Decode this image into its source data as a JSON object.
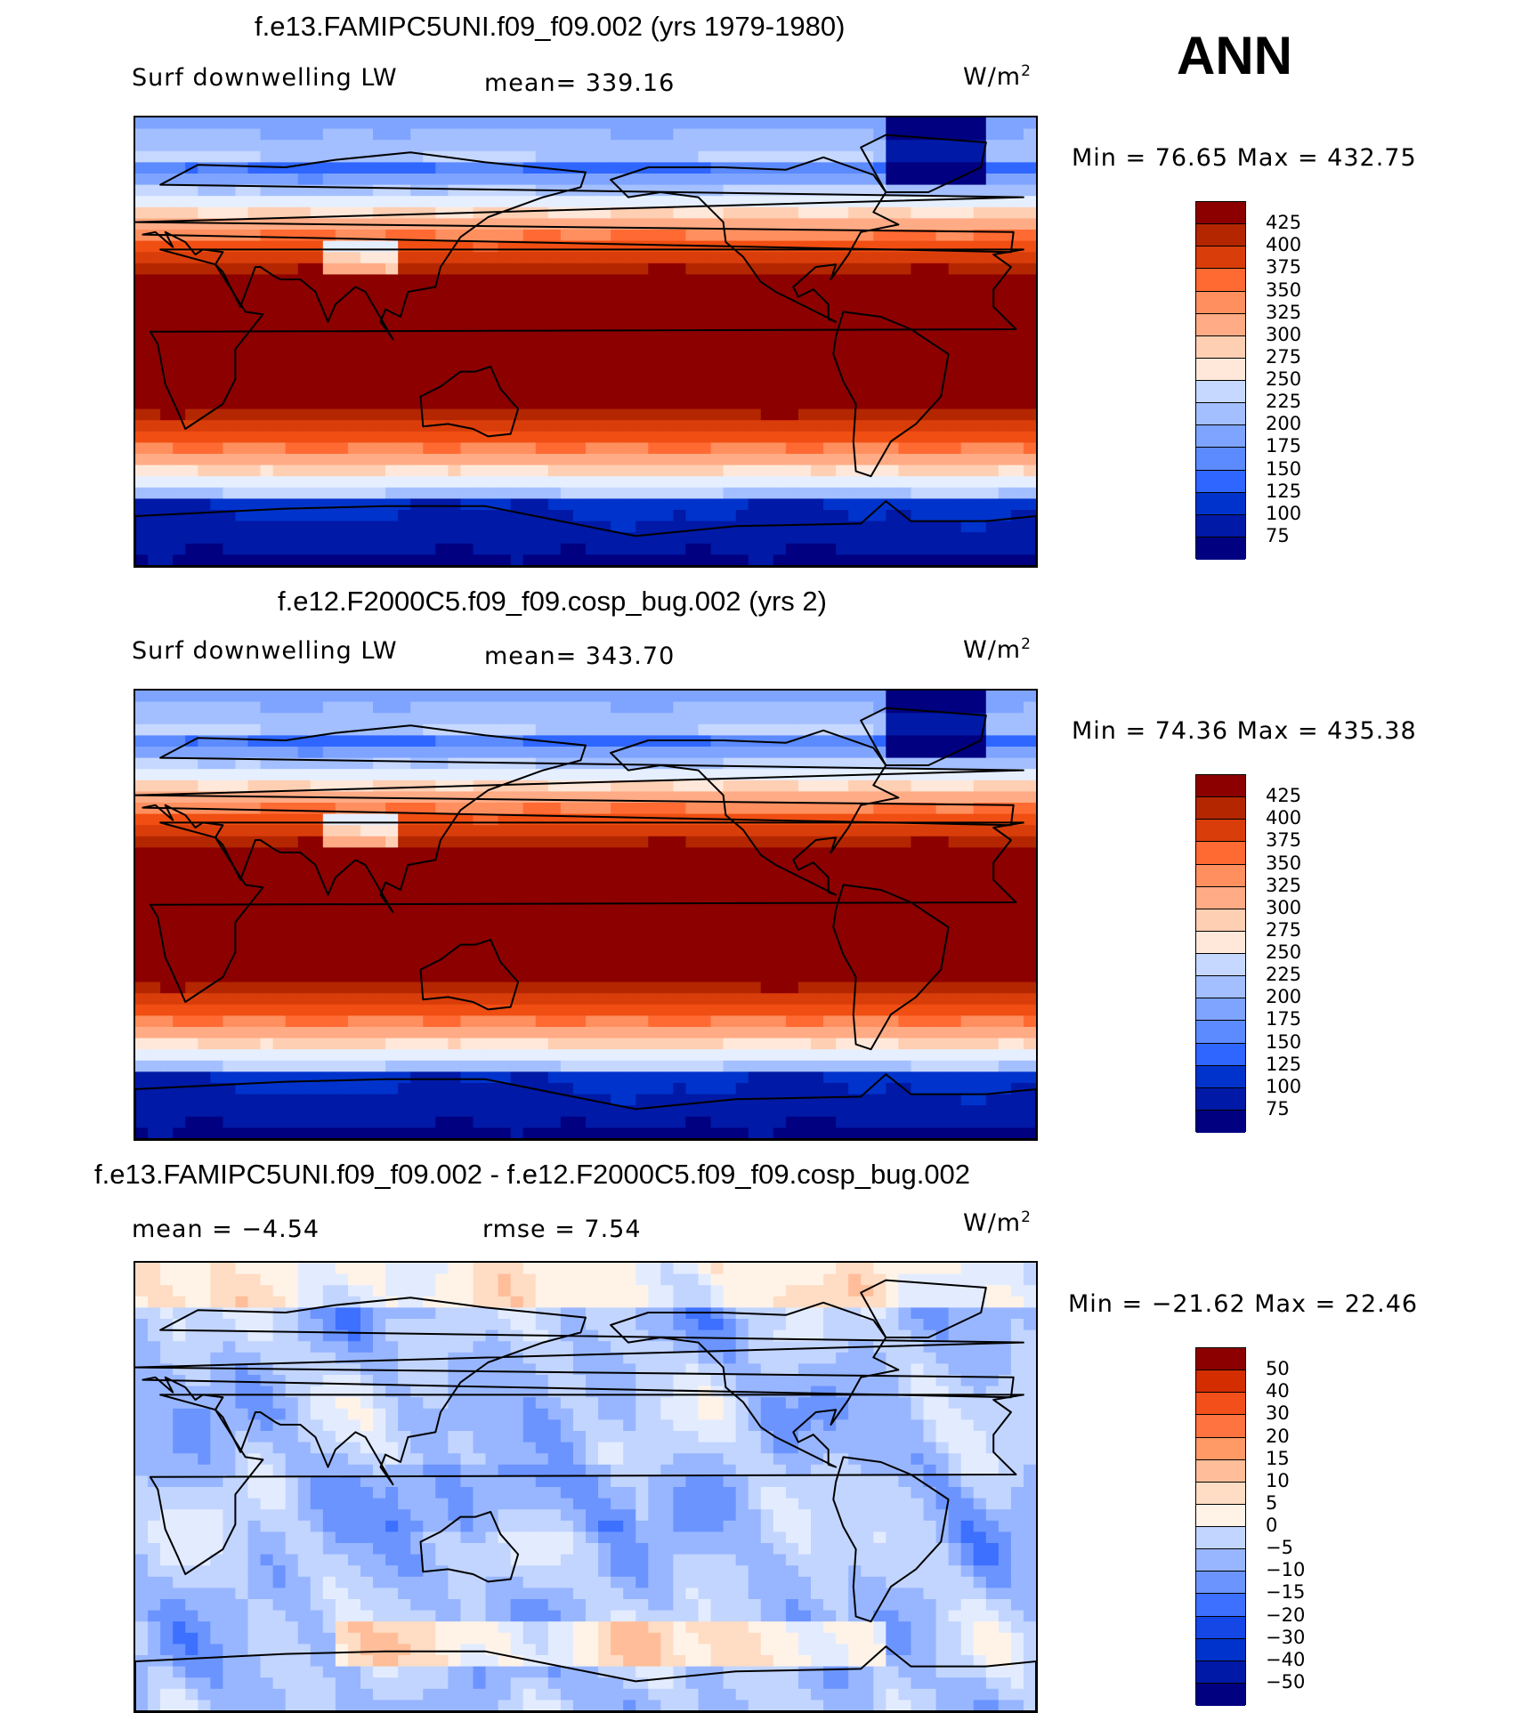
{
  "season": "ANN",
  "units": "W/m",
  "units_exp": "2",
  "colors": {
    "abs_scale": [
      "#ffffff",
      "#000080",
      "#0019a6",
      "#0033cc",
      "#1447e6",
      "#2e66ff",
      "#5c8aff",
      "#7ea4ff",
      "#a3bfff",
      "#c6d8ff",
      "#e5efff",
      "#ffe8d9",
      "#ffcfb3",
      "#ffab85",
      "#ff8f5e",
      "#ff6a33",
      "#f04e12",
      "#d93d0a",
      "#b32600",
      "#8c0000"
    ],
    "diff_scale": [
      "#000080",
      "#0019a6",
      "#0033cc",
      "#1447e6",
      "#3d70ff",
      "#6b94ff",
      "#98b6ff",
      "#c2d5ff",
      "#e3ecff",
      "#fff3e8",
      "#ffdcc4",
      "#ffbd99",
      "#ff9966",
      "#ff7340",
      "#f24f1a",
      "#d42d00",
      "#8c0000"
    ]
  },
  "panels": [
    {
      "title": "f.e13.FAMIPC5UNI.f09_f09.002 (yrs 1979-1980)",
      "left_label": "Surf downwelling LW",
      "center_label": "mean= 339.16",
      "minmax": "Min =   76.65 Max = 432.75"
    },
    {
      "title": "f.e12.F2000C5.f09_f09.cosp_bug.002 (yrs 2)",
      "left_label": "Surf downwelling LW",
      "center_label": "mean= 343.70",
      "minmax": "Min =   74.36 Max = 435.38"
    },
    {
      "title": "f.e13.FAMIPC5UNI.f09_f09.002 - f.e12.F2000C5.f09_f09.cosp_bug.002",
      "left_label": "mean =   −4.54",
      "center_label": "rmse =    7.54",
      "minmax": "Min = −21.62 Max =  22.46"
    }
  ],
  "chart_data": [
    {
      "type": "heatmap",
      "title": "f.e13.FAMIPC5UNI.f09_f09.002 (yrs 1979-1980)",
      "variable": "Surf downwelling LW",
      "units": "W/m2",
      "mean": 339.16,
      "min": 76.65,
      "max": 432.75,
      "contour_levels": [
        75,
        100,
        125,
        150,
        175,
        200,
        225,
        250,
        275,
        300,
        325,
        350,
        375,
        400,
        425
      ],
      "colorbar_labels": [
        "425",
        "400",
        "375",
        "350",
        "325",
        "300",
        "275",
        "250",
        "225",
        "200",
        "175",
        "150",
        "125",
        "100",
        "75"
      ]
    },
    {
      "type": "heatmap",
      "title": "f.e12.F2000C5.f09_f09.cosp_bug.002 (yrs 2)",
      "variable": "Surf downwelling LW",
      "units": "W/m2",
      "mean": 343.7,
      "min": 74.36,
      "max": 435.38,
      "contour_levels": [
        75,
        100,
        125,
        150,
        175,
        200,
        225,
        250,
        275,
        300,
        325,
        350,
        375,
        400,
        425
      ],
      "colorbar_labels": [
        "425",
        "400",
        "375",
        "350",
        "325",
        "300",
        "275",
        "250",
        "225",
        "200",
        "175",
        "150",
        "125",
        "100",
        "75"
      ]
    },
    {
      "type": "heatmap",
      "title": "f.e13.FAMIPC5UNI.f09_f09.002 - f.e12.F2000C5.f09_f09.cosp_bug.002",
      "units": "W/m2",
      "mean": -4.54,
      "rmse": 7.54,
      "min": -21.62,
      "max": 22.46,
      "contour_levels": [
        -50,
        -40,
        -30,
        -20,
        -15,
        -10,
        -5,
        0,
        5,
        10,
        15,
        20,
        30,
        40,
        50
      ],
      "colorbar_labels": [
        "50",
        "40",
        "30",
        "20",
        "15",
        "10",
        "5",
        "0",
        "−5",
        "−10",
        "−15",
        "−20",
        "−30",
        "−40",
        "−50"
      ]
    }
  ]
}
